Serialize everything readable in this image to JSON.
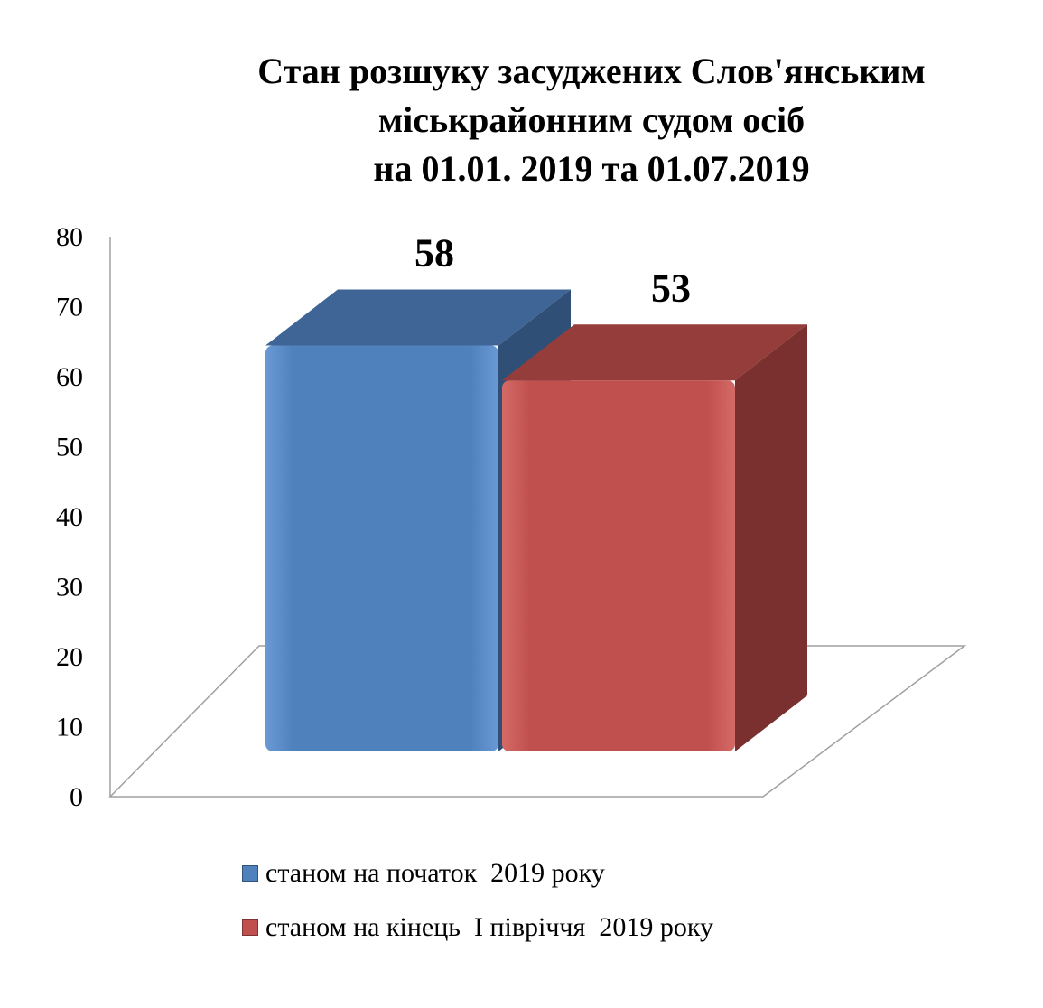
{
  "chart_data": {
    "type": "bar",
    "title_lines": [
      "Стан розшуку засуджених Слов'янським",
      "міськрайонним судом осіб",
      "на 01.01. 2019 та 01.07.2019"
    ],
    "categories": [
      "станом на початок  2019 року",
      "станом на кінець  I півріччя  2019 року"
    ],
    "values": [
      58,
      53
    ],
    "data_labels": [
      "58",
      "53"
    ],
    "colors": [
      "#4F81BD",
      "#C0504D"
    ],
    "yticks": [
      "0",
      "10",
      "20",
      "30",
      "40",
      "50",
      "60",
      "70",
      "80"
    ],
    "ylim": [
      0,
      80
    ],
    "style": "3d-column",
    "grid": false,
    "legend_position": "bottom"
  }
}
